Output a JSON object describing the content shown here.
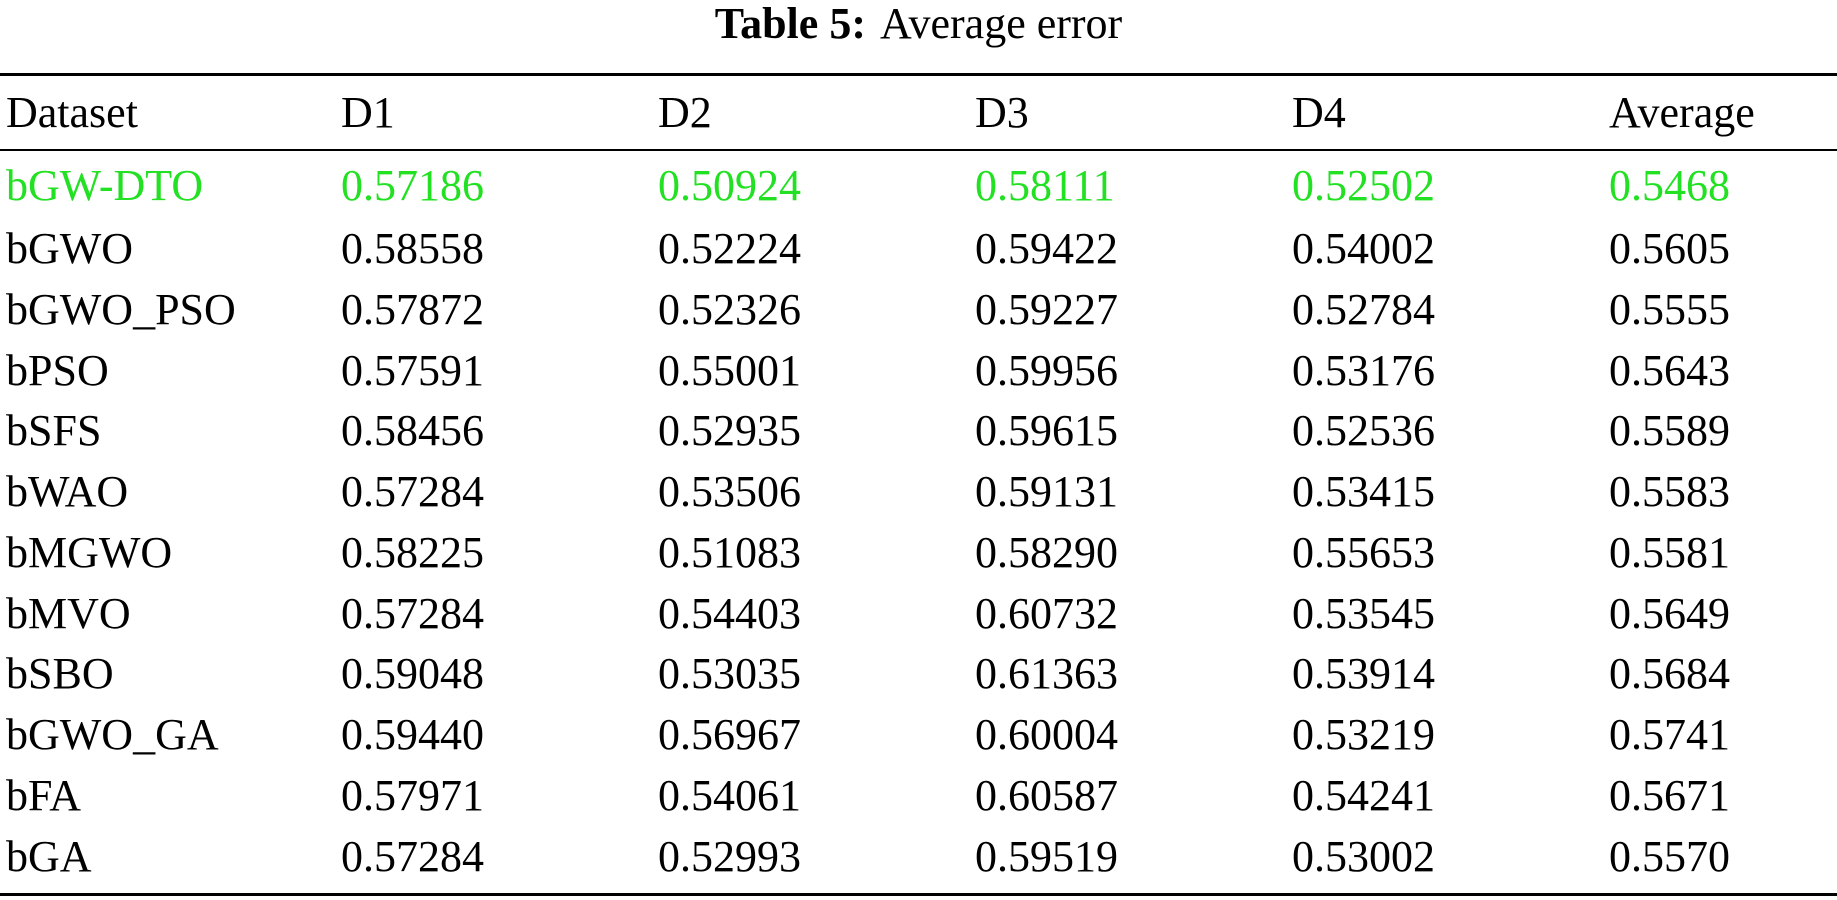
{
  "caption": {
    "label": "Table 5:",
    "text": "Average error"
  },
  "colors": {
    "highlight": "#22e022",
    "text": "#000000"
  },
  "table": {
    "columns": [
      "Dataset",
      "D1",
      "D2",
      "D3",
      "D4",
      "Average"
    ],
    "rows": [
      [
        "bGW-DTO",
        "0.57186",
        "0.50924",
        "0.58111",
        "0.52502",
        "0.5468"
      ],
      [
        "bGWO",
        "0.58558",
        "0.52224",
        "0.59422",
        "0.54002",
        "0.5605"
      ],
      [
        "bGWO_PSO",
        "0.57872",
        "0.52326",
        "0.59227",
        "0.52784",
        "0.5555"
      ],
      [
        "bPSO",
        "0.57591",
        "0.55001",
        "0.59956",
        "0.53176",
        "0.5643"
      ],
      [
        "bSFS",
        "0.58456",
        "0.52935",
        "0.59615",
        "0.52536",
        "0.5589"
      ],
      [
        "bWAO",
        "0.57284",
        "0.53506",
        "0.59131",
        "0.53415",
        "0.5583"
      ],
      [
        "bMGWO",
        "0.58225",
        "0.51083",
        "0.58290",
        "0.55653",
        "0.5581"
      ],
      [
        "bMVO",
        "0.57284",
        "0.54403",
        "0.60732",
        "0.53545",
        "0.5649"
      ],
      [
        "bSBO",
        "0.59048",
        "0.53035",
        "0.61363",
        "0.53914",
        "0.5684"
      ],
      [
        "bGWO_GA",
        "0.59440",
        "0.56967",
        "0.60004",
        "0.53219",
        "0.5741"
      ],
      [
        "bFA",
        "0.57971",
        "0.54061",
        "0.60587",
        "0.54241",
        "0.5671"
      ],
      [
        "bGA",
        "0.57284",
        "0.52993",
        "0.59519",
        "0.53002",
        "0.5570"
      ]
    ]
  }
}
